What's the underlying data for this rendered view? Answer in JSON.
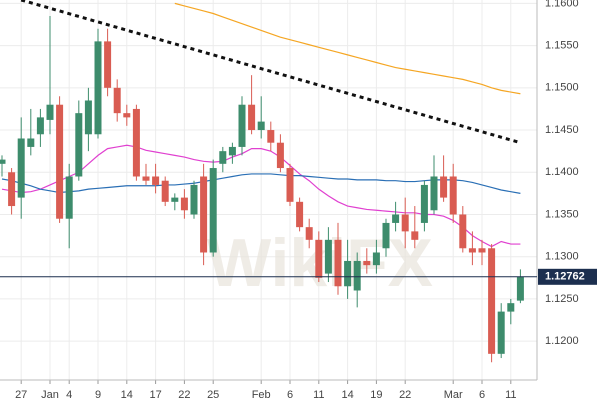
{
  "chart_data": {
    "type": "candlestick",
    "categories": [
      null,
      null,
      "27",
      null,
      null,
      "Jan",
      null,
      "4",
      null,
      null,
      "9",
      null,
      null,
      "14",
      null,
      null,
      "17",
      null,
      null,
      "22",
      null,
      null,
      "25",
      null,
      null,
      null,
      null,
      "Feb",
      null,
      null,
      "6",
      null,
      null,
      "11",
      null,
      null,
      "14",
      null,
      null,
      "19",
      null,
      null,
      "22",
      null,
      null,
      null,
      null,
      "Mar",
      null,
      null,
      "6",
      null,
      null,
      "11",
      null
    ],
    "open": [
      1.141,
      1.14,
      1.137,
      1.143,
      1.1445,
      1.1462,
      1.148,
      1.1345,
      1.1395,
      1.1445,
      1.1445,
      1.1555,
      1.15,
      1.147,
      1.1475,
      1.1395,
      1.1395,
      1.139,
      1.1365,
      1.137,
      1.135,
      1.1395,
      1.1305,
      1.141,
      1.142,
      1.143,
      1.148,
      1.145,
      1.145,
      1.1435,
      1.1405,
      1.1365,
      1.1335,
      1.132,
      1.128,
      1.132,
      1.1265,
      1.126,
      1.1295,
      1.129,
      1.131,
      1.134,
      1.135,
      1.133,
      1.134,
      1.1355,
      1.1395,
      1.1395,
      1.135,
      1.131,
      1.131,
      1.131,
      1.1185,
      1.1235,
      1.1248
    ],
    "high": [
      1.142,
      1.1405,
      1.1465,
      1.1475,
      1.1475,
      1.1585,
      1.149,
      1.141,
      1.1485,
      1.15,
      1.157,
      1.157,
      1.151,
      1.148,
      1.148,
      1.141,
      1.141,
      1.1395,
      1.1375,
      1.138,
      1.139,
      1.141,
      1.1415,
      1.143,
      1.1435,
      1.149,
      1.1515,
      1.149,
      1.146,
      1.1445,
      1.141,
      1.137,
      1.1345,
      1.133,
      1.1335,
      1.134,
      1.132,
      1.1305,
      1.131,
      1.132,
      1.1345,
      1.1365,
      1.137,
      1.136,
      1.139,
      1.142,
      1.142,
      1.141,
      1.136,
      1.133,
      1.132,
      1.1315,
      1.1245,
      1.125,
      1.1285
    ],
    "low": [
      1.1395,
      1.135,
      1.1345,
      1.142,
      1.143,
      1.1445,
      1.134,
      1.131,
      1.139,
      1.1425,
      1.144,
      1.149,
      1.146,
      1.1455,
      1.139,
      1.1385,
      1.1375,
      1.136,
      1.1355,
      1.1345,
      1.1345,
      1.129,
      1.13,
      1.14,
      1.141,
      1.142,
      1.1445,
      1.144,
      1.1425,
      1.14,
      1.136,
      1.133,
      1.131,
      1.127,
      1.127,
      1.1255,
      1.125,
      1.124,
      1.128,
      1.128,
      1.13,
      1.133,
      1.131,
      1.131,
      1.133,
      1.135,
      1.1365,
      1.134,
      1.1305,
      1.129,
      1.129,
      1.1175,
      1.118,
      1.122,
      1.1245
    ],
    "close": [
      1.1415,
      1.136,
      1.144,
      1.144,
      1.1465,
      1.148,
      1.1345,
      1.1395,
      1.147,
      1.1485,
      1.1555,
      1.15,
      1.147,
      1.1465,
      1.1395,
      1.139,
      1.1385,
      1.1365,
      1.137,
      1.1355,
      1.1385,
      1.1305,
      1.1405,
      1.1425,
      1.143,
      1.148,
      1.145,
      1.146,
      1.1435,
      1.1405,
      1.1365,
      1.1335,
      1.132,
      1.1275,
      1.132,
      1.1265,
      1.1295,
      1.1295,
      1.129,
      1.1305,
      1.134,
      1.135,
      1.133,
      1.132,
      1.1385,
      1.1395,
      1.137,
      1.135,
      1.131,
      1.1305,
      1.1305,
      1.1185,
      1.1235,
      1.1245,
      1.1276
    ],
    "up_color": "#3d8c6c",
    "down_color": "#d95c52",
    "series": [
      {
        "color": "#f5a623",
        "values": [
          null,
          null,
          null,
          null,
          null,
          null,
          null,
          null,
          null,
          null,
          null,
          null,
          null,
          null,
          null,
          null,
          null,
          null,
          1.16,
          1.1597,
          1.1594,
          1.1591,
          1.1588,
          1.1584,
          1.158,
          1.1576,
          1.1572,
          1.1568,
          1.1564,
          1.156,
          1.1557,
          1.1554,
          1.1551,
          1.1548,
          1.1545,
          1.1542,
          1.1539,
          1.1536,
          1.1533,
          1.153,
          1.1527,
          1.1524,
          1.1522,
          1.152,
          1.1518,
          1.1516,
          1.1514,
          1.1512,
          1.151,
          1.1507,
          1.1504,
          1.15,
          1.1497,
          1.1495,
          1.1493
        ]
      },
      {
        "color": "#e040d0",
        "values": [
          1.138,
          1.1378,
          1.1376,
          1.1377,
          1.138,
          1.1385,
          1.139,
          1.1395,
          1.14,
          1.141,
          1.142,
          1.1428,
          1.143,
          1.1432,
          1.143,
          1.1426,
          1.1424,
          1.1422,
          1.142,
          1.1418,
          1.1415,
          1.1413,
          1.1412,
          1.1413,
          1.1418,
          1.1422,
          1.1428,
          1.1428,
          1.1425,
          1.1418,
          1.1408,
          1.1398,
          1.139,
          1.138,
          1.1372,
          1.1365,
          1.136,
          1.1358,
          1.1356,
          1.1355,
          1.1354,
          1.1353,
          1.1352,
          1.1352,
          1.135,
          1.135,
          1.1348,
          1.1343,
          1.1335,
          1.1325,
          1.1318,
          1.1312,
          1.1318,
          1.1315,
          1.1315
        ]
      },
      {
        "color": "#2a6fb5",
        "values": [
          1.1392,
          1.139,
          1.1387,
          1.1384,
          1.138,
          1.1378,
          1.1376,
          1.1377,
          1.1378,
          1.138,
          1.1381,
          1.1382,
          1.1383,
          1.1384,
          1.1384,
          1.1384,
          1.1384,
          1.1385,
          1.1385,
          1.1386,
          1.1387,
          1.1389,
          1.1391,
          1.1393,
          1.1395,
          1.1397,
          1.1398,
          1.1398,
          1.1398,
          1.1397,
          1.1396,
          1.1396,
          1.1395,
          1.1394,
          1.1393,
          1.1392,
          1.1392,
          1.1391,
          1.1391,
          1.1391,
          1.139,
          1.139,
          1.1389,
          1.1389,
          1.139,
          1.1391,
          1.1391,
          1.1391,
          1.139,
          1.1388,
          1.1385,
          1.1382,
          1.1379,
          1.1377,
          1.1375
        ]
      }
    ],
    "trendline": {
      "x": [
        2,
        54
      ],
      "y": [
        1.1604,
        1.1435
      ]
    },
    "current_price": {
      "value": 1.12762,
      "label": "1.12762"
    },
    "watermark": "WikiFX",
    "ylim": [
      1.1154,
      1.1604
    ],
    "yticks": [
      {
        "value": 1.12,
        "label": "1.1200"
      },
      {
        "value": 1.125,
        "label": "1.1250"
      },
      {
        "value": 1.13,
        "label": "1.1300"
      },
      {
        "value": 1.135,
        "label": "1.1350"
      },
      {
        "value": 1.14,
        "label": "1.1400"
      },
      {
        "value": 1.145,
        "label": "1.1450"
      },
      {
        "value": 1.15,
        "label": "1.1500"
      },
      {
        "value": 1.155,
        "label": "1.1550"
      },
      {
        "value": 1.16,
        "label": "1.1600"
      }
    ],
    "grid": true
  }
}
